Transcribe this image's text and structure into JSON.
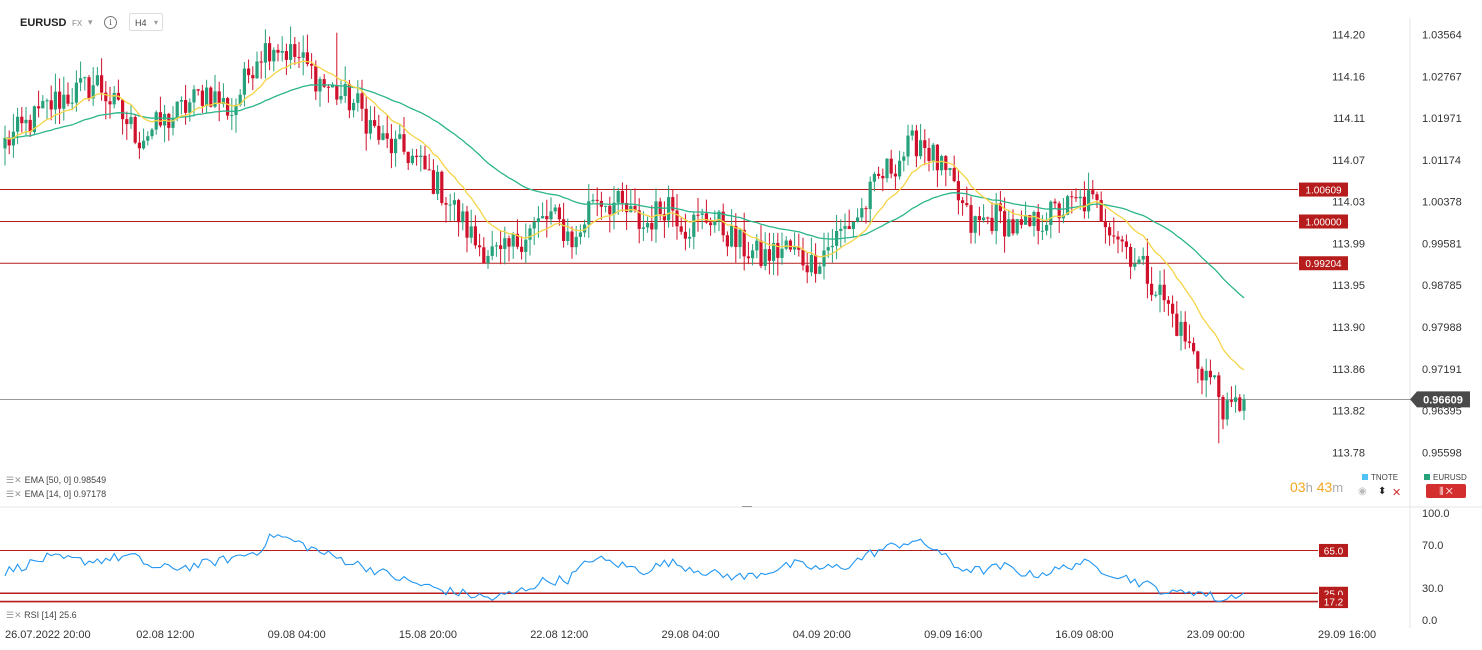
{
  "header": {
    "symbol": "EURUSD",
    "market": "FX",
    "timeframe": "H4",
    "info_glyph": "i"
  },
  "countdown": {
    "hours": "03",
    "h_unit": "h",
    "minutes": "43",
    "m_unit": "m"
  },
  "indicators": {
    "ema50": "EMA [50, 0] 0.98549",
    "ema14": "EMA [14, 0] 0.97178",
    "rsi": "RSI [14] 25.6"
  },
  "overlay_legend": {
    "tnote": "TNOTE",
    "eurusd": "EURUSD"
  },
  "colors": {
    "up": "#26a17b",
    "down": "#d0112b",
    "ema14": "#f5d547",
    "ema50": "#2bb58a",
    "level": "#b71c1c",
    "rsi": "#2196f3",
    "price_tag": "#4a4a4a",
    "tnote": "#4fc3f7"
  },
  "chart_data": [
    {
      "type": "candlestick",
      "symbol": "EURUSD",
      "timeframe": "H4",
      "x_labels": [
        "26.07.2022  20:00",
        "02.08  12:00",
        "09.08  04:00",
        "15.08  20:00",
        "22.08  12:00",
        "29.08  04:00",
        "04.09  20:00",
        "09.09  16:00",
        "16.09  08:00",
        "23.09  00:00",
        "29.09  16:00"
      ],
      "left_axis_ticks": [
        "114.20",
        "114.16",
        "114.11",
        "114.07",
        "114.03",
        "113.99",
        "113.95",
        "113.90",
        "113.86",
        "113.82",
        "113.78"
      ],
      "right_axis_ticks": [
        "1.03564",
        "1.02767",
        "1.01971",
        "1.01174",
        "1.00378",
        "0.99581",
        "0.98785",
        "0.97988",
        "0.97191",
        "0.96395",
        "0.95598"
      ],
      "ylim": [
        0.953,
        1.0388
      ],
      "current_price": "0.96609",
      "levels": [
        "1.00609",
        "1.00000",
        "0.99204"
      ],
      "close_path": [
        [
          0,
          1.015
        ],
        [
          12,
          1.023
        ],
        [
          22,
          1.0265
        ],
        [
          26,
          1.022
        ],
        [
          32,
          1.016
        ],
        [
          40,
          1.02
        ],
        [
          48,
          1.025
        ],
        [
          54,
          1.021
        ],
        [
          60,
          1.032
        ],
        [
          64,
          1.034
        ],
        [
          70,
          1.031
        ],
        [
          76,
          1.026
        ],
        [
          84,
          1.022
        ],
        [
          90,
          1.015
        ],
        [
          96,
          1.013
        ],
        [
          104,
          1.006
        ],
        [
          108,
          1.001
        ],
        [
          112,
          0.996
        ],
        [
          118,
          0.993
        ],
        [
          124,
          0.998
        ],
        [
          130,
          1.001
        ],
        [
          136,
          0.996
        ],
        [
          140,
          1.005
        ],
        [
          146,
          1.003
        ],
        [
          152,
          0.999
        ],
        [
          158,
          1.004
        ],
        [
          162,
          0.999
        ],
        [
          168,
          1.001
        ],
        [
          174,
          0.996
        ],
        [
          180,
          0.993
        ],
        [
          186,
          0.995
        ],
        [
          192,
          0.992
        ],
        [
          198,
          0.997
        ],
        [
          204,
          1.002
        ],
        [
          208,
          1.008
        ],
        [
          214,
          1.013
        ],
        [
          218,
          1.016
        ],
        [
          222,
          1.011
        ],
        [
          226,
          1.006
        ],
        [
          230,
          0.999
        ],
        [
          236,
          1.001
        ],
        [
          242,
          0.998
        ],
        [
          248,
          1.001
        ],
        [
          254,
          1.003
        ],
        [
          258,
          1.004
        ],
        [
          262,
          1.001
        ],
        [
          268,
          0.994
        ],
        [
          272,
          0.99
        ],
        [
          276,
          0.985
        ],
        [
          280,
          0.979
        ],
        [
          284,
          0.973
        ],
        [
          288,
          0.969
        ],
        [
          291,
          0.963
        ],
        [
          294,
          0.9655
        ]
      ],
      "wick_extremes": [
        [
          289,
          0.9577
        ],
        [
          79,
          1.036
        ]
      ],
      "series": [
        {
          "name": "EMA [14, 0]",
          "last": 0.97178
        },
        {
          "name": "EMA [50, 0]",
          "last": 0.98549
        }
      ]
    },
    {
      "type": "line",
      "name": "RSI [14]",
      "last": 25.6,
      "y_ticks": [
        "100.0",
        "70.0",
        "30.0",
        "0.0"
      ],
      "ylim": [
        0,
        100
      ],
      "levels": [
        "65.0",
        "25.0",
        "17.2"
      ],
      "path": [
        [
          0,
          45
        ],
        [
          10,
          58
        ],
        [
          20,
          55
        ],
        [
          30,
          60
        ],
        [
          36,
          48
        ],
        [
          44,
          50
        ],
        [
          52,
          56
        ],
        [
          60,
          64
        ],
        [
          64,
          80
        ],
        [
          70,
          72
        ],
        [
          76,
          62
        ],
        [
          84,
          52
        ],
        [
          90,
          44
        ],
        [
          96,
          36
        ],
        [
          104,
          28
        ],
        [
          110,
          24
        ],
        [
          116,
          20
        ],
        [
          122,
          26
        ],
        [
          128,
          36
        ],
        [
          134,
          38
        ],
        [
          140,
          58
        ],
        [
          146,
          52
        ],
        [
          152,
          46
        ],
        [
          158,
          54
        ],
        [
          164,
          48
        ],
        [
          170,
          42
        ],
        [
          176,
          40
        ],
        [
          182,
          46
        ],
        [
          188,
          52
        ],
        [
          194,
          48
        ],
        [
          200,
          50
        ],
        [
          206,
          62
        ],
        [
          212,
          70
        ],
        [
          216,
          74
        ],
        [
          222,
          66
        ],
        [
          226,
          50
        ],
        [
          232,
          46
        ],
        [
          238,
          50
        ],
        [
          244,
          42
        ],
        [
          250,
          46
        ],
        [
          256,
          54
        ],
        [
          262,
          46
        ],
        [
          268,
          38
        ],
        [
          274,
          30
        ],
        [
          278,
          24
        ],
        [
          282,
          28
        ],
        [
          286,
          24
        ],
        [
          290,
          18
        ],
        [
          294,
          25.6
        ]
      ]
    }
  ]
}
